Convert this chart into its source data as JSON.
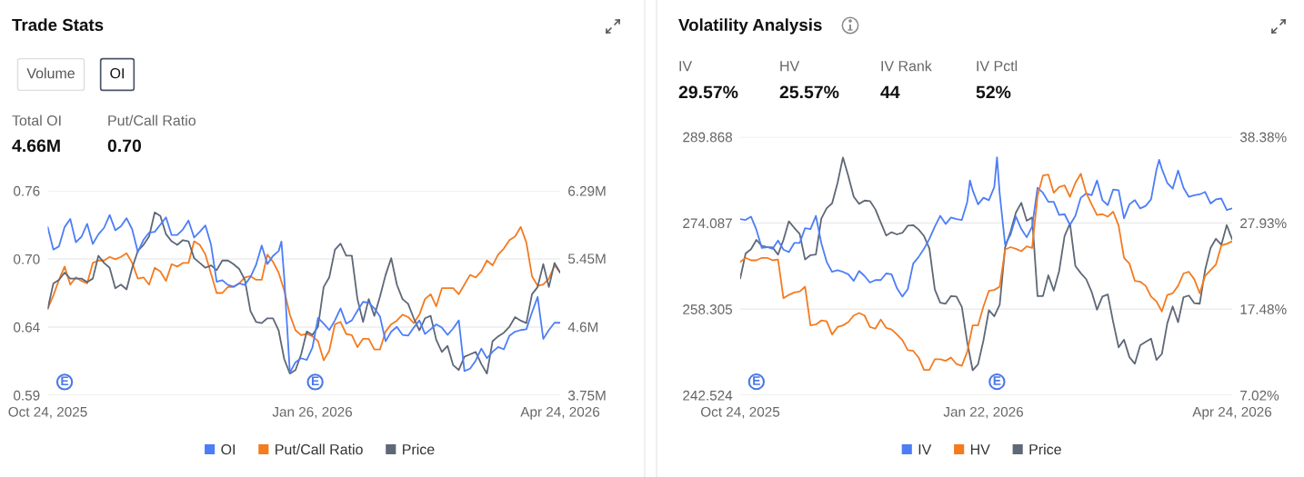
{
  "chart_data": [
    {
      "type": "line",
      "title": "Trade Stats",
      "annotations": [
        "Volume",
        "OI",
        "Total OI",
        "4.66M",
        "Put/Call Ratio",
        "0.70",
        {
          "text": "E",
          "x": "2025-10-30",
          "y": 0.598
        },
        {
          "text": "E",
          "x": "2026-01-27",
          "y": 0.598
        }
      ],
      "x": [
        "2025-10-24",
        "2025-10-26",
        "2025-10-28",
        "2025-10-30",
        "2025-11-01",
        "2025-11-03",
        "2025-11-05",
        "2025-11-07",
        "2025-11-09",
        "2025-11-11",
        "2025-11-13",
        "2025-11-15",
        "2025-11-17",
        "2025-11-19",
        "2025-11-21",
        "2025-11-23",
        "2025-11-25",
        "2025-11-27",
        "2025-11-29",
        "2025-12-01",
        "2025-12-03",
        "2025-12-05",
        "2025-12-07",
        "2025-12-09",
        "2025-12-11",
        "2025-12-13",
        "2025-12-15",
        "2025-12-17",
        "2025-12-19",
        "2025-12-21",
        "2025-12-23",
        "2025-12-25",
        "2025-12-27",
        "2025-12-29",
        "2025-12-31",
        "2026-01-02",
        "2026-01-04",
        "2026-01-06",
        "2026-01-08",
        "2026-01-10",
        "2026-01-12",
        "2026-01-14",
        "2026-01-16",
        "2026-01-18",
        "2026-01-20",
        "2026-01-22",
        "2026-01-24",
        "2026-01-26",
        "2026-01-28",
        "2026-01-30",
        "2026-02-01",
        "2026-02-03",
        "2026-02-05",
        "2026-02-07",
        "2026-02-09",
        "2026-02-11",
        "2026-02-13",
        "2026-02-15",
        "2026-02-17",
        "2026-02-19",
        "2026-02-21",
        "2026-02-23",
        "2026-02-25",
        "2026-02-27",
        "2026-03-01",
        "2026-03-03",
        "2026-03-05",
        "2026-03-07",
        "2026-03-09",
        "2026-03-11",
        "2026-03-13",
        "2026-03-15",
        "2026-03-17",
        "2026-03-19",
        "2026-03-21",
        "2026-03-23",
        "2026-03-25",
        "2026-03-27",
        "2026-03-29",
        "2026-03-31",
        "2026-04-02",
        "2026-04-04",
        "2026-04-06",
        "2026-04-08",
        "2026-04-10",
        "2026-04-12",
        "2026-04-14",
        "2026-04-16",
        "2026-04-18",
        "2026-04-20",
        "2026-04-22",
        "2026-04-24"
      ],
      "xlim": [
        "2025-10-24",
        "2026-04-24"
      ],
      "xticks": [
        {
          "value": "2025-10-24",
          "label": "Oct 24, 2025"
        },
        {
          "value": "2026-01-26",
          "label": "Jan 26, 2026"
        },
        {
          "value": "2026-04-24",
          "label": "Apr 24, 2026"
        }
      ],
      "ylim": [
        0.587,
        0.757
      ],
      "yticks": [
        {
          "value": 0.587,
          "label": "0.59"
        },
        {
          "value": 0.6437,
          "label": "0.64"
        },
        {
          "value": 0.7003,
          "label": "0.70"
        },
        {
          "value": 0.757,
          "label": "0.76"
        }
      ],
      "y2lim": [
        3.75,
        6.29
      ],
      "y2ticks": [
        {
          "value": 3.75,
          "label": "3.75M"
        },
        {
          "value": 4.6,
          "label": "4.6M"
        },
        {
          "value": 5.45,
          "label": "5.45M"
        },
        {
          "value": 6.29,
          "label": "6.29M"
        }
      ],
      "series": [
        {
          "name": "OI",
          "color": "#4d7ef7",
          "axis": "y2",
          "x": [
            "2025-10-24",
            "2025-10-26",
            "2025-10-28",
            "2025-10-30",
            "2025-11-01",
            "2025-11-03",
            "2025-11-05",
            "2025-11-07",
            "2025-11-09",
            "2025-11-11",
            "2025-11-13",
            "2025-11-15",
            "2025-11-17",
            "2025-11-19",
            "2025-11-21",
            "2025-11-23",
            "2025-11-25",
            "2025-11-27",
            "2025-11-29",
            "2025-12-01",
            "2025-12-03",
            "2025-12-05",
            "2025-12-07",
            "2025-12-09",
            "2025-12-11",
            "2025-12-13",
            "2025-12-15",
            "2025-12-17",
            "2025-12-19",
            "2025-12-21",
            "2025-12-23",
            "2025-12-25",
            "2025-12-27",
            "2025-12-29",
            "2025-12-31",
            "2026-01-02",
            "2026-01-04",
            "2026-01-06",
            "2026-01-08",
            "2026-01-10",
            "2026-01-12",
            "2026-01-14",
            "2026-01-15",
            "2026-01-16",
            "2026-01-18",
            "2026-01-20",
            "2026-01-22",
            "2026-01-24",
            "2026-01-26",
            "2026-01-28",
            "2026-01-30",
            "2026-02-01",
            "2026-02-03",
            "2026-02-05",
            "2026-02-07",
            "2026-02-09",
            "2026-02-11",
            "2026-02-13",
            "2026-02-15",
            "2026-02-17",
            "2026-02-19",
            "2026-02-21",
            "2026-02-23",
            "2026-02-25",
            "2026-02-27",
            "2026-03-01",
            "2026-03-03",
            "2026-03-05",
            "2026-03-07",
            "2026-03-09",
            "2026-03-11",
            "2026-03-13",
            "2026-03-15",
            "2026-03-17",
            "2026-03-19",
            "2026-03-21",
            "2026-03-23",
            "2026-03-25",
            "2026-03-27",
            "2026-03-29",
            "2026-03-31",
            "2026-04-02",
            "2026-04-04",
            "2026-04-06",
            "2026-04-08",
            "2026-04-10",
            "2026-04-12",
            "2026-04-14",
            "2026-04-16",
            "2026-04-18",
            "2026-04-20",
            "2026-04-22",
            "2026-04-24"
          ],
          "values": [
            5.84,
            5.56,
            5.6,
            5.84,
            5.94,
            5.65,
            5.72,
            5.88,
            5.63,
            5.75,
            5.83,
            5.99,
            5.8,
            5.85,
            5.95,
            5.81,
            5.53,
            5.68,
            5.77,
            5.78,
            5.87,
            5.96,
            5.74,
            5.74,
            5.81,
            5.92,
            5.71,
            5.78,
            5.86,
            5.62,
            5.16,
            5.18,
            5.12,
            5.1,
            5.14,
            5.12,
            5.22,
            5.37,
            5.61,
            5.38,
            5.48,
            5.54,
            5.66,
            5.21,
            4.03,
            4.16,
            4.21,
            4.19,
            4.34,
            4.71,
            4.64,
            4.56,
            4.68,
            4.83,
            4.64,
            4.68,
            4.8,
            4.91,
            4.9,
            4.83,
            4.73,
            4.42,
            4.54,
            4.6,
            4.5,
            4.49,
            4.59,
            4.68,
            4.51,
            4.57,
            4.63,
            4.59,
            4.5,
            4.58,
            4.68,
            4.05,
            4.08,
            4.18,
            4.33,
            4.21,
            4.29,
            4.35,
            4.32,
            4.49,
            4.54,
            4.56,
            4.57,
            4.78,
            4.97,
            4.45,
            4.56,
            4.65,
            4.65
          ]
        },
        {
          "name": "Put/Call Ratio",
          "color": "#f47b20",
          "values": [
            0.659,
            0.67,
            0.683,
            0.694,
            0.679,
            0.685,
            0.682,
            0.68,
            0.697,
            0.699,
            0.699,
            0.702,
            0.7,
            0.702,
            0.705,
            0.697,
            0.684,
            0.685,
            0.679,
            0.693,
            0.69,
            0.682,
            0.696,
            0.694,
            0.697,
            0.697,
            0.715,
            0.712,
            0.704,
            0.688,
            0.672,
            0.672,
            0.677,
            0.677,
            0.68,
            0.685,
            0.686,
            0.683,
            0.683,
            0.704,
            0.698,
            0.689,
            0.674,
            0.654,
            0.641,
            0.637,
            0.638,
            0.636,
            0.632,
            0.616,
            0.624,
            0.646,
            0.648,
            0.638,
            0.637,
            0.627,
            0.634,
            0.634,
            0.625,
            0.625,
            0.64,
            0.646,
            0.649,
            0.654,
            0.652,
            0.647,
            0.654,
            0.667,
            0.671,
            0.661,
            0.676,
            0.676,
            0.676,
            0.671,
            0.679,
            0.687,
            0.685,
            0.69,
            0.699,
            0.695,
            0.704,
            0.709,
            0.716,
            0.719,
            0.727,
            0.714,
            0.686,
            0.678,
            0.679,
            0.684,
            0.695,
            0.689
          ]
        },
        {
          "name": "Price",
          "color": "#5e6878",
          "values": [
            0.659,
            0.68,
            0.683,
            0.689,
            0.684,
            0.684,
            0.684,
            0.681,
            0.684,
            0.703,
            0.697,
            0.693,
            0.676,
            0.679,
            0.675,
            0.693,
            0.707,
            0.712,
            0.719,
            0.739,
            0.736,
            0.721,
            0.715,
            0.712,
            0.716,
            0.715,
            0.701,
            0.697,
            0.693,
            0.695,
            0.691,
            0.699,
            0.699,
            0.696,
            0.692,
            0.683,
            0.657,
            0.648,
            0.647,
            0.651,
            0.651,
            0.641,
            0.617,
            0.605,
            0.608,
            0.621,
            0.64,
            0.637,
            0.644,
            0.677,
            0.685,
            0.708,
            0.713,
            0.703,
            0.703,
            0.667,
            0.648,
            0.667,
            0.653,
            0.669,
            0.687,
            0.701,
            0.679,
            0.667,
            0.663,
            0.651,
            0.641,
            0.651,
            0.653,
            0.633,
            0.623,
            0.628,
            0.612,
            0.608,
            0.619,
            0.621,
            0.623,
            0.613,
            0.605,
            0.632,
            0.636,
            0.639,
            0.644,
            0.652,
            0.649,
            0.647,
            0.671,
            0.677,
            0.696,
            0.677,
            0.697,
            0.689
          ]
        }
      ],
      "grid": "y",
      "legend": "bottom",
      "line_style": "solid",
      "marker": "none"
    },
    {
      "type": "line",
      "title": "Volatility Analysis",
      "annotations": [
        "IV",
        "29.57%",
        "HV",
        "25.57%",
        "IV Rank",
        "44",
        "IV Pctl",
        "52%",
        {
          "text": "E",
          "x": "2025-10-30",
          "y": 245.0
        },
        {
          "text": "E",
          "x": "2026-01-27",
          "y": 245.0
        }
      ],
      "x": [
        "2025-10-24",
        "2025-10-26",
        "2025-10-28",
        "2025-10-30",
        "2025-11-01",
        "2025-11-03",
        "2025-11-05",
        "2025-11-07",
        "2025-11-09",
        "2025-11-11",
        "2025-11-13",
        "2025-11-15",
        "2025-11-17",
        "2025-11-19",
        "2025-11-21",
        "2025-11-23",
        "2025-11-25",
        "2025-11-27",
        "2025-11-29",
        "2025-12-01",
        "2025-12-03",
        "2025-12-05",
        "2025-12-07",
        "2025-12-09",
        "2025-12-11",
        "2025-12-13",
        "2025-12-15",
        "2025-12-17",
        "2025-12-19",
        "2025-12-21",
        "2025-12-23",
        "2025-12-25",
        "2025-12-27",
        "2025-12-29",
        "2025-12-31",
        "2026-01-02",
        "2026-01-04",
        "2026-01-06",
        "2026-01-08",
        "2026-01-10",
        "2026-01-12",
        "2026-01-14",
        "2026-01-16",
        "2026-01-18",
        "2026-01-20",
        "2026-01-22",
        "2026-01-24",
        "2026-01-26",
        "2026-01-28",
        "2026-01-30",
        "2026-02-01",
        "2026-02-03",
        "2026-02-05",
        "2026-02-07",
        "2026-02-09",
        "2026-02-11",
        "2026-02-13",
        "2026-02-15",
        "2026-02-17",
        "2026-02-19",
        "2026-02-21",
        "2026-02-23",
        "2026-02-25",
        "2026-02-27",
        "2026-03-01",
        "2026-03-03",
        "2026-03-05",
        "2026-03-07",
        "2026-03-09",
        "2026-03-11",
        "2026-03-13",
        "2026-03-15",
        "2026-03-17",
        "2026-03-19",
        "2026-03-21",
        "2026-03-23",
        "2026-03-25",
        "2026-03-27",
        "2026-03-29",
        "2026-03-31",
        "2026-04-02",
        "2026-04-04",
        "2026-04-06",
        "2026-04-08",
        "2026-04-10",
        "2026-04-12",
        "2026-04-14",
        "2026-04-16",
        "2026-04-18",
        "2026-04-20",
        "2026-04-22",
        "2026-04-24"
      ],
      "xlim": [
        "2025-10-24",
        "2026-04-24"
      ],
      "xticks": [
        {
          "value": "2025-10-24",
          "label": "Oct 24, 2025"
        },
        {
          "value": "2026-01-22",
          "label": "Jan 22, 2026"
        },
        {
          "value": "2026-04-24",
          "label": "Apr 24, 2026"
        }
      ],
      "ylim": [
        242.524,
        289.868
      ],
      "yticks": [
        242.524,
        258.305,
        274.087,
        289.868
      ],
      "y2lim": [
        7.02,
        38.38
      ],
      "y2ticks": [
        {
          "value": 7.02,
          "label": "7.02%"
        },
        {
          "value": 17.48,
          "label": "17.48%"
        },
        {
          "value": 27.93,
          "label": "27.93%"
        },
        {
          "value": 38.38,
          "label": "38.38%"
        }
      ],
      "series": [
        {
          "name": "IV",
          "color": "#4d7ef7",
          "axis": "y2",
          "x": [
            "2025-10-24",
            "2025-10-26",
            "2025-10-28",
            "2025-10-30",
            "2025-11-01",
            "2025-11-03",
            "2025-11-05",
            "2025-11-07",
            "2025-11-09",
            "2025-11-11",
            "2025-11-13",
            "2025-11-15",
            "2025-11-17",
            "2025-11-19",
            "2025-11-21",
            "2025-11-23",
            "2025-11-25",
            "2025-11-27",
            "2025-11-29",
            "2025-12-01",
            "2025-12-03",
            "2025-12-05",
            "2025-12-07",
            "2025-12-09",
            "2025-12-11",
            "2025-12-13",
            "2025-12-15",
            "2025-12-17",
            "2025-12-19",
            "2025-12-21",
            "2025-12-23",
            "2025-12-25",
            "2025-12-27",
            "2025-12-29",
            "2025-12-31",
            "2026-01-02",
            "2026-01-04",
            "2026-01-06",
            "2026-01-08",
            "2026-01-10",
            "2026-01-12",
            "2026-01-14",
            "2026-01-16",
            "2026-01-17",
            "2026-01-18",
            "2026-01-20",
            "2026-01-22",
            "2026-01-24",
            "2026-01-26",
            "2026-01-27",
            "2026-01-28",
            "2026-01-30",
            "2026-02-01",
            "2026-02-03",
            "2026-02-05",
            "2026-02-07",
            "2026-02-09",
            "2026-02-11",
            "2026-02-13",
            "2026-02-15",
            "2026-02-17",
            "2026-02-19",
            "2026-02-21",
            "2026-02-23",
            "2026-02-25",
            "2026-02-27",
            "2026-03-01",
            "2026-03-03",
            "2026-03-05",
            "2026-03-07",
            "2026-03-09",
            "2026-03-11",
            "2026-03-13",
            "2026-03-15",
            "2026-03-17",
            "2026-03-19",
            "2026-03-21",
            "2026-03-23",
            "2026-03-25",
            "2026-03-27",
            "2026-03-28",
            "2026-03-29",
            "2026-03-31",
            "2026-04-02",
            "2026-04-04",
            "2026-04-06",
            "2026-04-08",
            "2026-04-10",
            "2026-04-12",
            "2026-04-14",
            "2026-04-16",
            "2026-04-18",
            "2026-04-20",
            "2026-04-22",
            "2026-04-24"
          ],
          "values": [
            28.4,
            28.3,
            28.7,
            27.1,
            24.9,
            25.0,
            24.8,
            25.8,
            24.7,
            24.4,
            25.5,
            25.5,
            27.3,
            27.2,
            28.8,
            25.5,
            23.2,
            22.0,
            22.2,
            22.0,
            21.7,
            20.9,
            22.1,
            21.5,
            20.7,
            21.0,
            21.0,
            21.8,
            21.7,
            20.0,
            19.0,
            19.9,
            23.0,
            23.8,
            24.8,
            26.0,
            27.5,
            28.8,
            27.8,
            28.6,
            28.4,
            28.3,
            30.5,
            33.1,
            31.9,
            30.2,
            31.0,
            30.7,
            32.3,
            35.9,
            31.5,
            25.3,
            26.5,
            28.7,
            27.2,
            26.2,
            27.5,
            32.2,
            31.6,
            30.5,
            30.5,
            28.9,
            29.0,
            27.7,
            28.8,
            31.0,
            31.5,
            31.3,
            33.1,
            30.7,
            30.1,
            32.0,
            31.9,
            28.5,
            30.2,
            30.7,
            29.7,
            30.0,
            30.8,
            34.4,
            35.6,
            34.5,
            32.8,
            32.1,
            34.3,
            32.2,
            31.1,
            31.3,
            31.4,
            31.7,
            30.3,
            30.8,
            30.9,
            29.5,
            29.7
          ]
        },
        {
          "name": "HV",
          "color": "#f47b20",
          "axis": "y2",
          "values": [
            23.2,
            23.7,
            23.4,
            23.4,
            23.7,
            23.7,
            23.4,
            23.5,
            18.8,
            19.2,
            19.5,
            19.6,
            20.2,
            15.5,
            15.6,
            16.1,
            16.0,
            14.4,
            15.3,
            15.5,
            15.9,
            16.7,
            17.0,
            16.7,
            15.3,
            15.1,
            16.2,
            15.2,
            15.0,
            14.4,
            13.7,
            12.5,
            12.4,
            11.6,
            10.1,
            10.1,
            11.4,
            11.4,
            11.2,
            11.6,
            10.8,
            10.6,
            12.3,
            15.5,
            15.5,
            17.8,
            19.7,
            19.8,
            20.2,
            24.7,
            25.0,
            24.8,
            24.5,
            25.1,
            24.9,
            31.2,
            33.7,
            33.8,
            31.6,
            32.3,
            32.5,
            31.1,
            32.8,
            33.9,
            31.6,
            30.2,
            28.9,
            29.0,
            28.7,
            29.3,
            27.6,
            23.7,
            23.0,
            20.9,
            20.8,
            20.3,
            19.0,
            18.4,
            17.2,
            19.2,
            19.4,
            20.3,
            21.8,
            22.0,
            21.1,
            19.4,
            21.5,
            22.2,
            22.9,
            25.2,
            25.4,
            25.7
          ]
        },
        {
          "name": "Price",
          "color": "#5e6878",
          "values": [
            263.9,
            268.5,
            269.3,
            271.0,
            269.9,
            269.7,
            269.6,
            268.3,
            271.0,
            274.4,
            273.2,
            272.1,
            267.4,
            268.2,
            268.3,
            274.9,
            276.8,
            277.7,
            281.4,
            286.1,
            282.7,
            278.9,
            277.6,
            278.2,
            278.1,
            276.6,
            274.2,
            271.8,
            272.4,
            272.0,
            272.3,
            273.6,
            273.7,
            272.9,
            271.7,
            269.4,
            261.9,
            259.5,
            259.3,
            260.7,
            260.6,
            258.7,
            252.2,
            247.1,
            248.2,
            252.6,
            258.1,
            257.0,
            259.1,
            269.6,
            272.5,
            276.0,
            277.8,
            274.5,
            275.1,
            260.7,
            260.7,
            264.5,
            261.7,
            265.3,
            271.7,
            274.0,
            266.2,
            264.9,
            263.8,
            261.5,
            258.2,
            260.6,
            261.0,
            255.9,
            251.3,
            252.7,
            249.5,
            248.3,
            251.7,
            252.3,
            252.9,
            249.0,
            250.1,
            255.7,
            258.8,
            255.9,
            260.5,
            260.8,
            259.4,
            259.3,
            265.5,
            269.5,
            271.2,
            270.1,
            273.7,
            271.1
          ]
        }
      ],
      "grid": "y",
      "legend": "bottom",
      "line_style": "solid",
      "marker": "none"
    }
  ]
}
